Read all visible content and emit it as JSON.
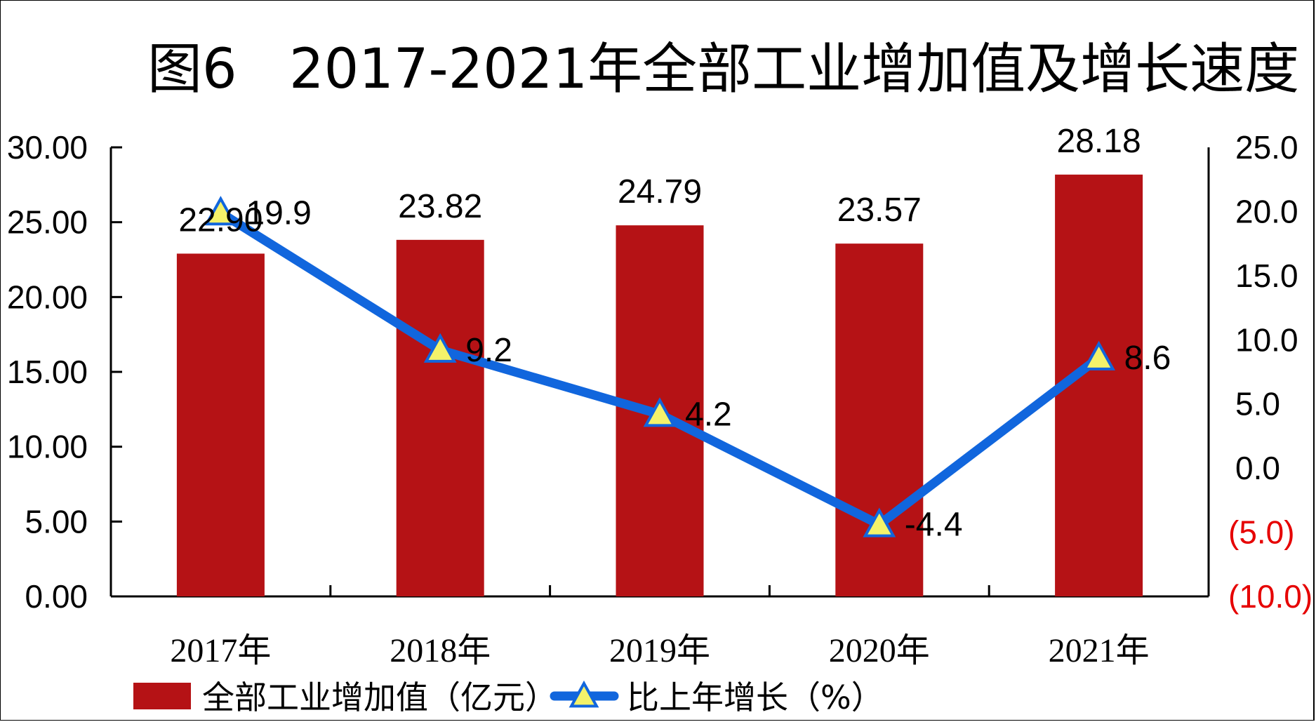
{
  "chart_data": {
    "type": "bar",
    "title_prefix": "图6",
    "title": "2017-2021年全部工业增加值及增长速度",
    "categories": [
      "2017年",
      "2018年",
      "2019年",
      "2020年",
      "2021年"
    ],
    "series": [
      {
        "name": "全部工业增加值（亿元）",
        "type": "bar",
        "axis": "left",
        "values": [
          22.9,
          23.82,
          24.79,
          23.57,
          28.18
        ],
        "labels": [
          "22.90",
          "23.82",
          "24.79",
          "23.57",
          "28.18"
        ],
        "color": "#B51215"
      },
      {
        "name": "比上年增长（%）",
        "type": "line",
        "axis": "right",
        "values": [
          19.9,
          9.2,
          4.2,
          -4.4,
          8.6
        ],
        "labels": [
          "19.9",
          "9.2",
          "4.2",
          "-4.4",
          "8.6"
        ],
        "color": "#1166DD",
        "marker": "triangle",
        "marker_fill": "#F4F26A",
        "marker_stroke": "#1166DD"
      }
    ],
    "y_left": {
      "min": 0,
      "max": 30,
      "ticks": [
        "0.00",
        "5.00",
        "10.00",
        "15.00",
        "20.00",
        "25.00",
        "30.00"
      ]
    },
    "y_right": {
      "min": -10,
      "max": 25,
      "ticks": [
        "(10.0)",
        "(5.0)",
        "0.0",
        "5.0",
        "10.0",
        "15.0",
        "20.0",
        "25.0"
      ],
      "negative_color": "#E60000"
    },
    "legend_position": "bottom-left",
    "grid": false
  }
}
